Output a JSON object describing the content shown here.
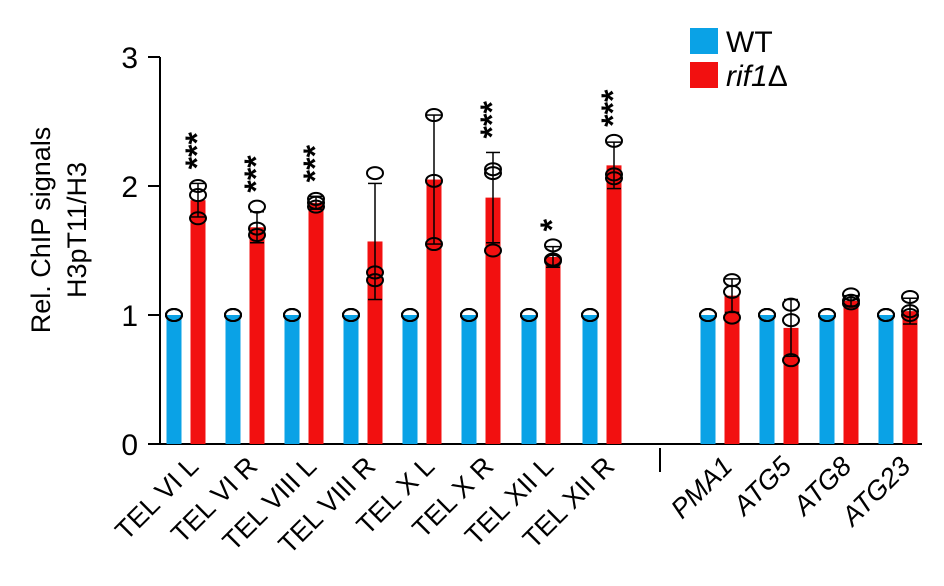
{
  "chart_data": {
    "type": "bar",
    "ylabel_line1": "Rel. ChIP signals",
    "ylabel_line2": "H3pT11/H3",
    "ylim": [
      0,
      3
    ],
    "yticks": [
      "0",
      "1",
      "2",
      "3"
    ],
    "categories": [
      "TEL VI L",
      "TEL VI R",
      "TEL VIII L",
      "TEL VIII R",
      "TEL X L",
      "TEL X R",
      "TEL XII L",
      "TEL XII R",
      "PMA1",
      "ATG5",
      "ATG8",
      "ATG23"
    ],
    "italic_categories": [
      "PMA1",
      "ATG5",
      "ATG8",
      "ATG23"
    ],
    "series": [
      {
        "name": "WT",
        "color": "#0aa2e6",
        "values": [
          1,
          1,
          1,
          1,
          1,
          1,
          1,
          1,
          1,
          1,
          1,
          1
        ],
        "errors": [
          0,
          0,
          0,
          0,
          0,
          0,
          0,
          0,
          0,
          0,
          0,
          0
        ],
        "points": [
          [
            1,
            1,
            1
          ],
          [
            1,
            1,
            1
          ],
          [
            1,
            1,
            1
          ],
          [
            1,
            1,
            1
          ],
          [
            1,
            1,
            1
          ],
          [
            1,
            1,
            1
          ],
          [
            1,
            1,
            1
          ],
          [
            1,
            1,
            1
          ],
          [
            1,
            1,
            1
          ],
          [
            1,
            1,
            1
          ],
          [
            1,
            1,
            1
          ],
          [
            1,
            1,
            1
          ]
        ]
      },
      {
        "name": "rif1Δ",
        "name_italic_part": "rif1",
        "name_suffix": "Δ",
        "color": "#f21010",
        "values": [
          1.89,
          1.68,
          1.87,
          1.57,
          2.05,
          1.91,
          1.45,
          2.16,
          1.15,
          0.9,
          1.11,
          1.03
        ],
        "errors": [
          0.13,
          0.12,
          0.05,
          0.45,
          0.5,
          0.35,
          0.08,
          0.18,
          0.13,
          0.22,
          0.04,
          0.1
        ],
        "points": [
          [
            2.0,
            1.93,
            1.75
          ],
          [
            1.84,
            1.67,
            1.62
          ],
          [
            1.9,
            1.87,
            1.84
          ],
          [
            2.1,
            1.33,
            1.27
          ],
          [
            2.55,
            2.04,
            1.55
          ],
          [
            2.13,
            2.1,
            1.5
          ],
          [
            1.54,
            1.43,
            1.42
          ],
          [
            2.35,
            2.09,
            2.06
          ],
          [
            1.27,
            1.18,
            0.98
          ],
          [
            1.08,
            0.96,
            0.65
          ],
          [
            1.16,
            1.11,
            1.09
          ],
          [
            1.14,
            1.03,
            1.0
          ]
        ]
      }
    ],
    "significance": [
      "***",
      "***",
      "***",
      "",
      "",
      "***",
      "*",
      "***",
      "",
      "",
      "",
      ""
    ],
    "legend_position": "top-right"
  }
}
